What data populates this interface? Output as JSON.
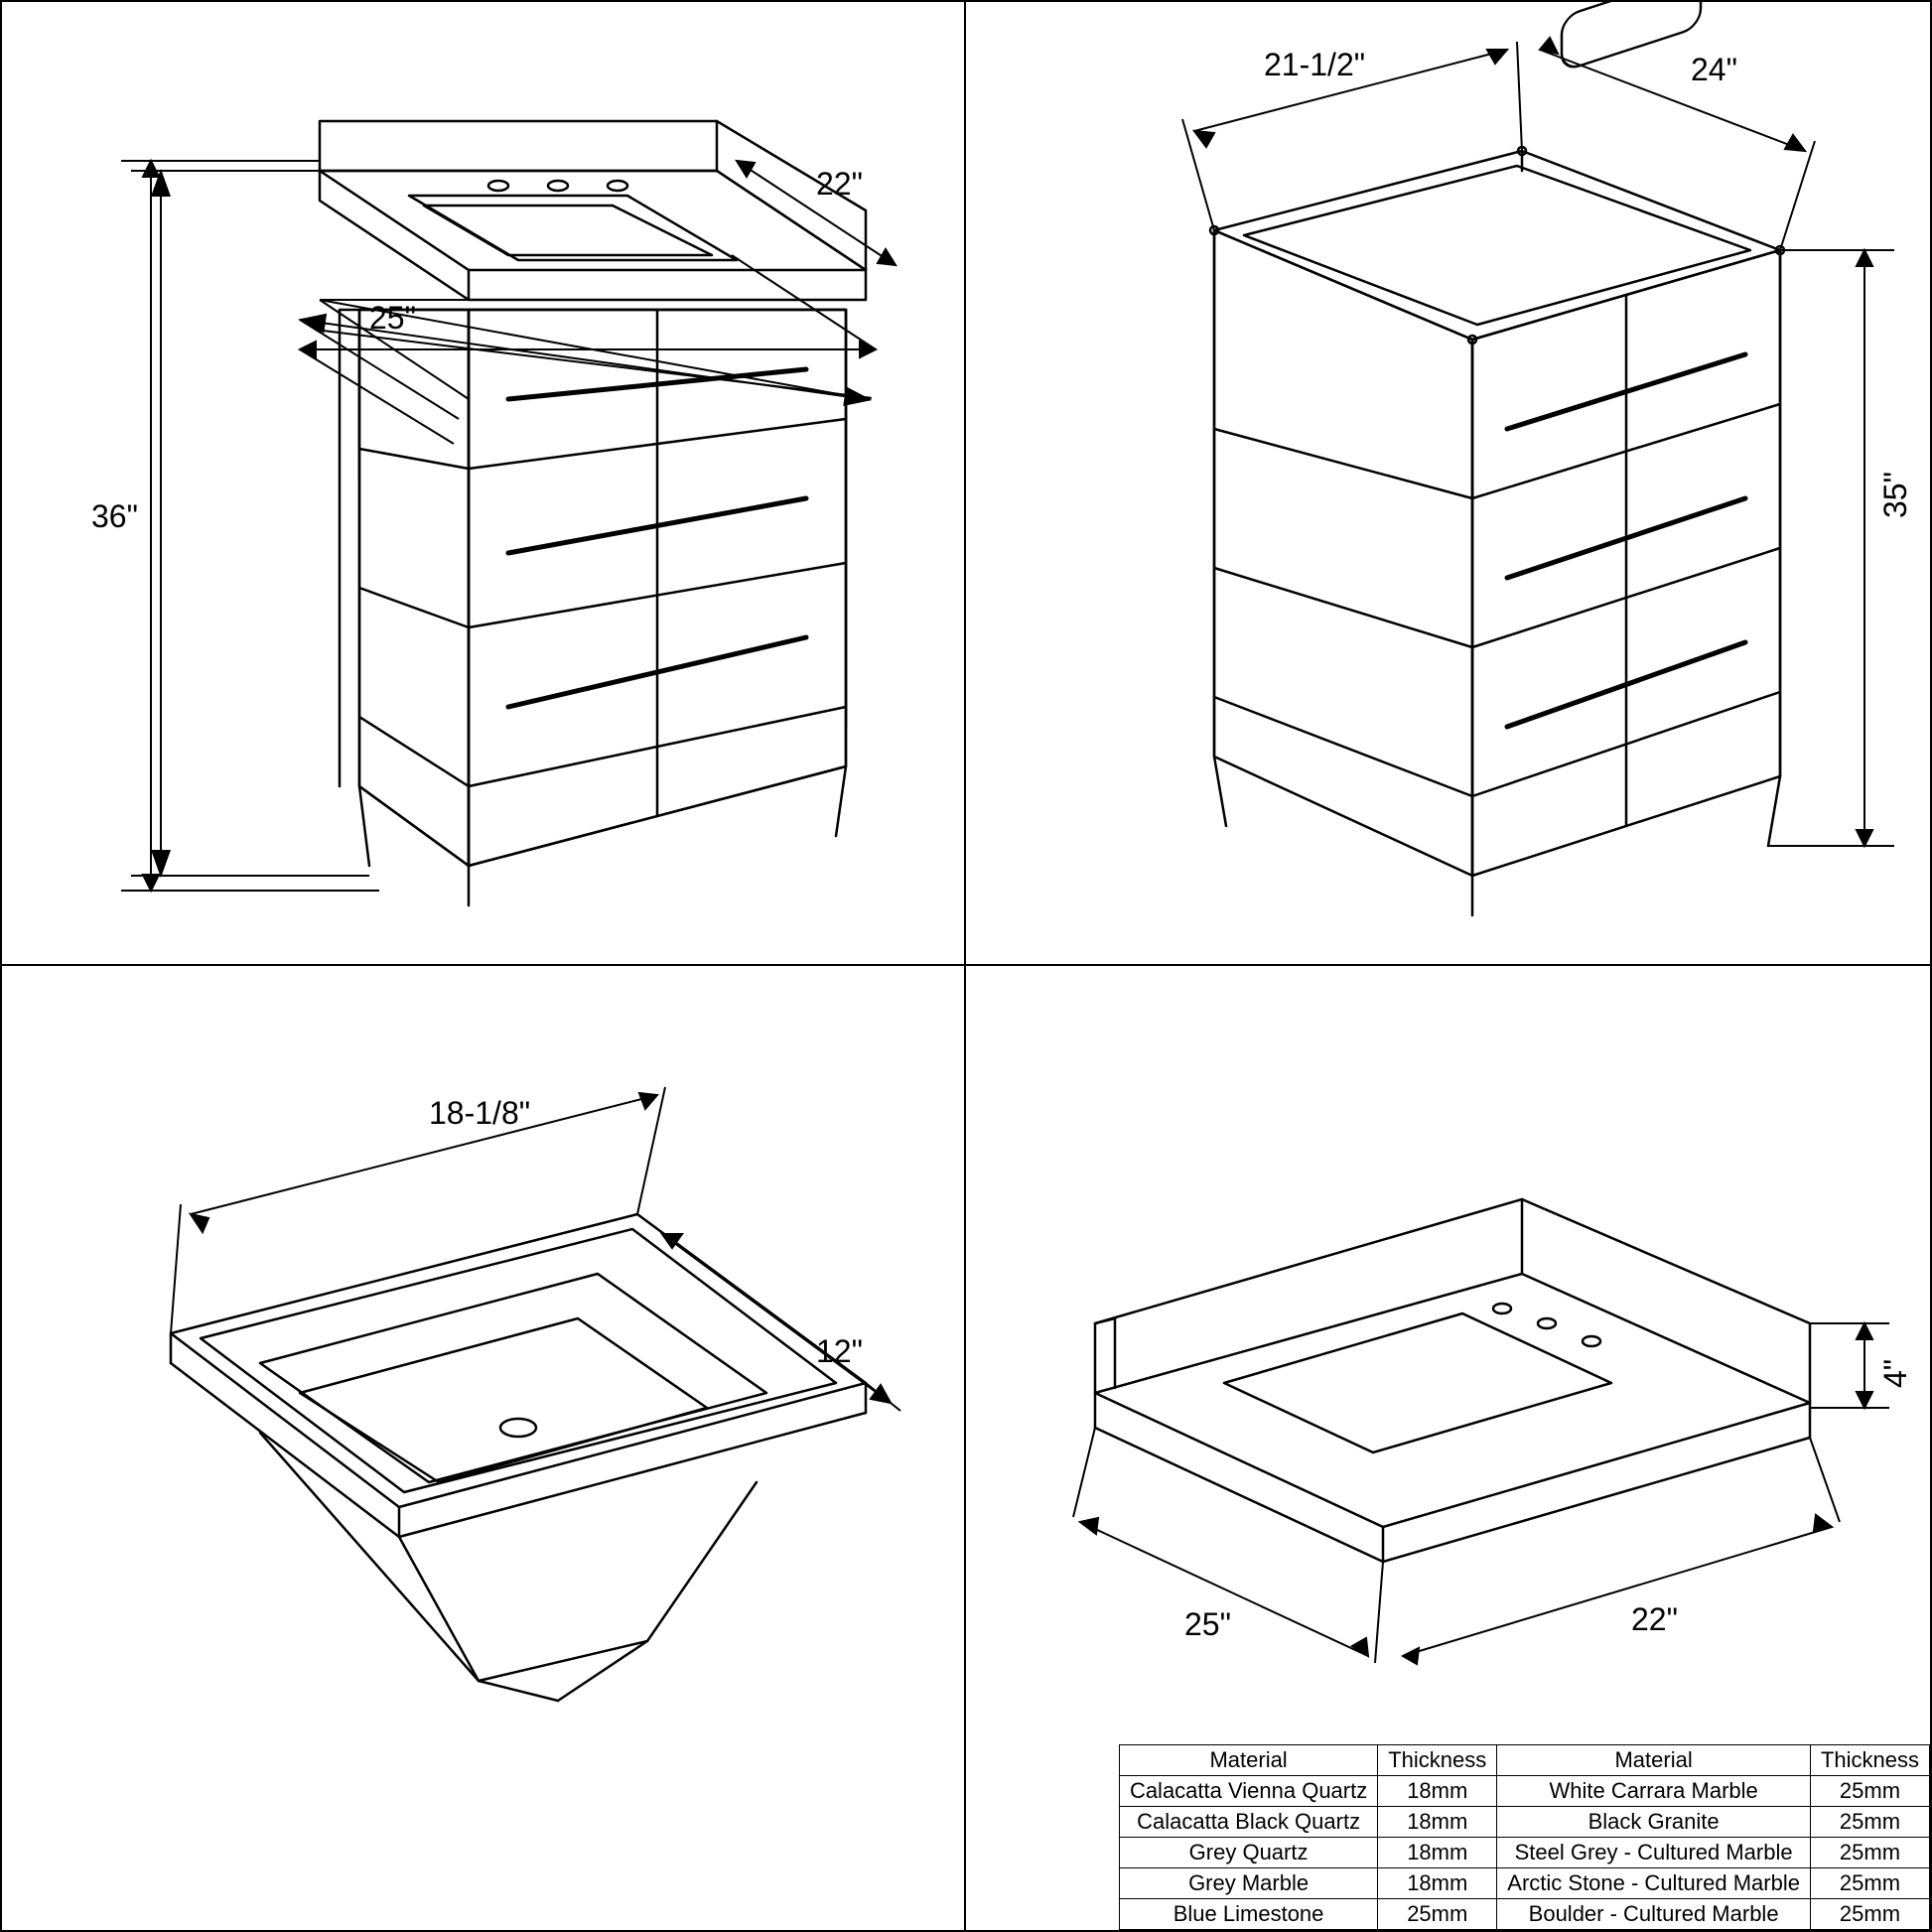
{
  "stroke": "#000000",
  "bg": "#ffffff",
  "font_size_dim": 32,
  "font_size_table": 22,
  "panel_tl": {
    "dim_height": "36\"",
    "dim_width": "25\"",
    "dim_depth": "22\""
  },
  "panel_tr": {
    "dim_depth": "21-1/2\"",
    "dim_width": "24\"",
    "dim_height": "35\""
  },
  "panel_bl": {
    "dim_width": "18-1/8\"",
    "dim_depth": "12\""
  },
  "panel_br": {
    "dim_width": "25\"",
    "dim_depth": "22\"",
    "dim_backsplash": "4\""
  },
  "table": {
    "headers": [
      "Material",
      "Thickness",
      "Material",
      "Thickness"
    ],
    "rows": [
      [
        "Calacatta Vienna Quartz",
        "18mm",
        "White Carrara Marble",
        "25mm"
      ],
      [
        "Calacatta Black Quartz",
        "18mm",
        "Black Granite",
        "25mm"
      ],
      [
        "Grey Quartz",
        "18mm",
        "Steel Grey - Cultured Marble",
        "25mm"
      ],
      [
        "Grey Marble",
        "18mm",
        "Arctic Stone - Cultured Marble",
        "25mm"
      ],
      [
        "Blue Limestone",
        "25mm",
        "Boulder - Cultured Marble",
        "25mm"
      ]
    ]
  }
}
